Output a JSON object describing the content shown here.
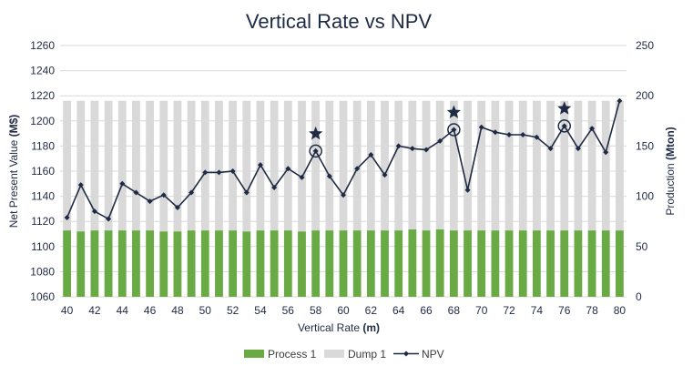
{
  "chart_data": {
    "type": "bar",
    "title": "Vertical Rate vs NPV",
    "xlabel_prefix": "Vertical Rate ",
    "xlabel_unit": "(m)",
    "ylabel_left_prefix": "Net Present Value ",
    "ylabel_left_unit": "(M$)",
    "ylabel_right_prefix": "Production ",
    "ylabel_right_unit": "(Mton)",
    "ylim_left": [
      1060,
      1260
    ],
    "yticks_left": [
      1060,
      1080,
      1100,
      1120,
      1140,
      1160,
      1180,
      1200,
      1220,
      1240,
      1260
    ],
    "ylim_right": [
      0,
      250
    ],
    "yticks_right": [
      0,
      50,
      100,
      150,
      200,
      250
    ],
    "x": [
      40,
      41,
      42,
      43,
      44,
      45,
      46,
      47,
      48,
      49,
      50,
      51,
      52,
      53,
      54,
      55,
      56,
      57,
      58,
      59,
      60,
      61,
      62,
      63,
      64,
      65,
      66,
      67,
      68,
      69,
      70,
      71,
      72,
      73,
      74,
      75,
      76,
      77,
      78,
      79,
      80
    ],
    "xtick_labels": [
      "40",
      "42",
      "44",
      "46",
      "48",
      "50",
      "52",
      "54",
      "56",
      "58",
      "60",
      "62",
      "64",
      "66",
      "68",
      "70",
      "72",
      "74",
      "76",
      "78",
      "80"
    ],
    "grid": "horizontal",
    "series": [
      {
        "name": "Process 1",
        "kind": "stacked-bar",
        "axis": "right",
        "color": "#6aaa45",
        "values": [
          66,
          65,
          66,
          66,
          66,
          66,
          66,
          65,
          65,
          66,
          66,
          66,
          66,
          65,
          66,
          66,
          66,
          65,
          66,
          66,
          66,
          66,
          66,
          66,
          66,
          67,
          66,
          67,
          66,
          66,
          66,
          66,
          66,
          66,
          66,
          66,
          66,
          66,
          66,
          66,
          66
        ]
      },
      {
        "name": "Dump 1",
        "kind": "stacked-bar",
        "axis": "right",
        "color": "#d9d9d9",
        "values": [
          129,
          130,
          129,
          129,
          129,
          129,
          129,
          130,
          130,
          129,
          129,
          129,
          129,
          130,
          129,
          129,
          129,
          130,
          129,
          129,
          129,
          129,
          129,
          129,
          129,
          128,
          129,
          128,
          129,
          129,
          129,
          129,
          129,
          129,
          129,
          129,
          129,
          129,
          129,
          129,
          129
        ]
      },
      {
        "name": "NPV",
        "kind": "line",
        "axis": "left",
        "color": "#1f2a44",
        "values": [
          1123,
          1149,
          1128,
          1122,
          1150,
          1143,
          1136,
          1141,
          1131,
          1143,
          1159,
          1159,
          1160,
          1143,
          1165,
          1147,
          1162,
          1155,
          1176,
          1156,
          1141,
          1162,
          1173,
          1157,
          1180,
          1178,
          1177,
          1184,
          1193,
          1145,
          1195,
          1191,
          1189,
          1189,
          1187,
          1178,
          1196,
          1178,
          1194,
          1175,
          1216
        ]
      }
    ],
    "highlights": [
      {
        "x": 58,
        "marker": "star-and-circle"
      },
      {
        "x": 68,
        "marker": "star-and-circle"
      },
      {
        "x": 76,
        "marker": "star-and-circle"
      }
    ]
  },
  "colors": {
    "process": "#6aaa45",
    "dump": "#d9d9d9",
    "npv": "#1f2a44",
    "grid": "#d9d9d9",
    "text": "#1f2a44"
  },
  "legend": {
    "process_label": "Process 1",
    "dump_label": "Dump 1",
    "npv_label": "NPV"
  }
}
